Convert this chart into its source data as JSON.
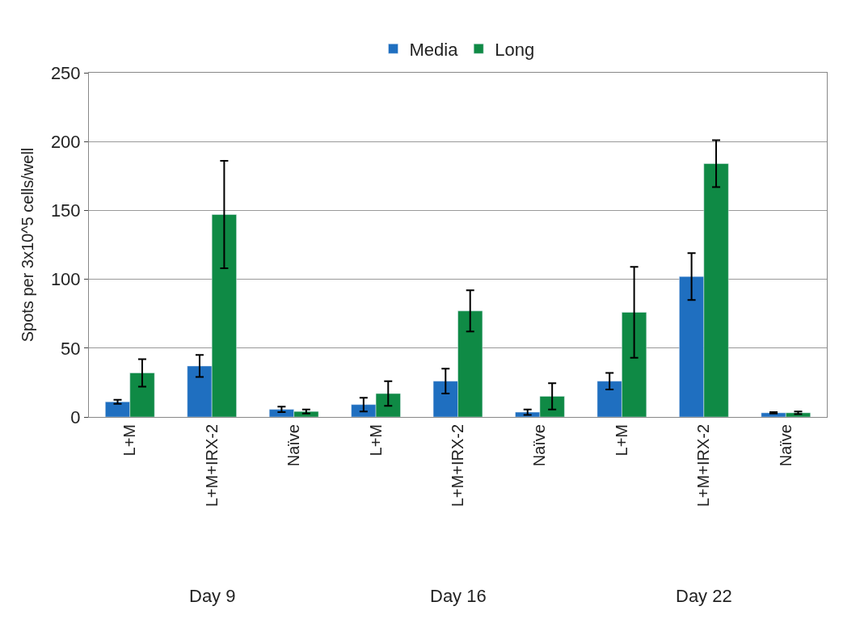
{
  "chart_data": {
    "type": "bar",
    "ylabel": "Spots per 3x10^5 cells/well",
    "categories": [
      "L+M",
      "L+M+IRX-2",
      "Naïve",
      "L+M",
      "L+M+IRX-2",
      "Naïve",
      "L+M",
      "L+M+IRX-2",
      "Naïve"
    ],
    "series": [
      {
        "name": "Media",
        "color": "#1f6fc0",
        "values": [
          11,
          37,
          5.5,
          9,
          26,
          3.5,
          26,
          102,
          3
        ],
        "errors": [
          1.5,
          8,
          2,
          5,
          9,
          2,
          6,
          17,
          0.5
        ]
      },
      {
        "name": "Long",
        "color": "#0f8a45",
        "values": [
          32,
          147,
          4,
          17,
          77,
          15,
          76,
          184,
          3
        ],
        "errors": [
          10,
          39,
          1.5,
          9,
          15,
          9.5,
          33,
          17,
          1
        ]
      }
    ],
    "annotations": [
      "Day 9",
      "Day 16",
      "Day 22"
    ],
    "ylim": [
      0,
      250
    ],
    "yticks": [
      0,
      50,
      100,
      150,
      200,
      250
    ],
    "grid": "y",
    "legend": "top"
  }
}
